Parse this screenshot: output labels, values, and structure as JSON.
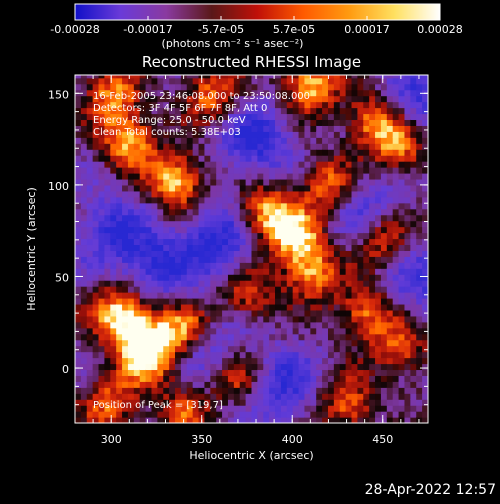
{
  "chart_data": {
    "type": "heatmap",
    "title": "Reconstructed RHESSI Image",
    "xlabel": "Heliocentric X (arcsec)",
    "ylabel": "Heliocentric Y (arcsec)",
    "xlim": [
      280,
      475
    ],
    "ylim": [
      -30,
      160
    ],
    "xticks": [
      300,
      350,
      400,
      450
    ],
    "yticks": [
      0,
      50,
      100,
      150
    ],
    "colorbar": {
      "unit_label": "(photons cm⁻² s⁻¹ asec⁻²)",
      "ticks": [
        "-0.00028",
        "-0.00017",
        "-5.7e-05",
        "5.7e-05",
        "0.00017",
        "0.00028"
      ],
      "range": [
        -0.00028,
        0.00028
      ],
      "stops": [
        "#1010c8",
        "#6a3ad8",
        "#8a3aa0",
        "#5a1818",
        "#c01008",
        "#ff5a00",
        "#ff9a10",
        "#ffe060",
        "#ffffff"
      ]
    },
    "annotations": [
      "16-Feb-2005 23:46:08.000 to 23:50:08.000",
      "Detectors: 3F 4F 5F 6F 7F 8F, Att 0",
      "Energy Range: 25.0 - 50.0 keV",
      "Clean     Total counts: 5.38E+03",
      "Position of Peak = [319,7]"
    ],
    "hotspots": [
      {
        "x": 320,
        "y": 7,
        "v": 1.0
      },
      {
        "x": 312,
        "y": 25,
        "v": 0.8
      },
      {
        "x": 340,
        "y": 22,
        "v": 0.75
      },
      {
        "x": 300,
        "y": 32,
        "v": 0.55
      },
      {
        "x": 336,
        "y": 102,
        "v": 0.95
      },
      {
        "x": 310,
        "y": 125,
        "v": 0.85
      },
      {
        "x": 300,
        "y": 150,
        "v": 0.7
      },
      {
        "x": 355,
        "y": 150,
        "v": 0.7
      },
      {
        "x": 410,
        "y": 155,
        "v": 0.9
      },
      {
        "x": 445,
        "y": 135,
        "v": 0.75
      },
      {
        "x": 460,
        "y": 120,
        "v": 0.7
      },
      {
        "x": 385,
        "y": 85,
        "v": 0.85
      },
      {
        "x": 402,
        "y": 72,
        "v": 0.8
      },
      {
        "x": 420,
        "y": 100,
        "v": 0.7
      },
      {
        "x": 410,
        "y": 52,
        "v": 0.75
      },
      {
        "x": 450,
        "y": 70,
        "v": 0.65
      },
      {
        "x": 440,
        "y": 30,
        "v": 0.7
      },
      {
        "x": 460,
        "y": 10,
        "v": 0.6
      },
      {
        "x": 375,
        "y": 40,
        "v": 0.55
      },
      {
        "x": 370,
        "y": -5,
        "v": 0.6
      },
      {
        "x": 300,
        "y": -20,
        "v": 0.65
      },
      {
        "x": 340,
        "y": -25,
        "v": 0.55
      },
      {
        "x": 430,
        "y": -20,
        "v": 0.7
      }
    ],
    "coldspots": [
      {
        "x": 360,
        "y": 70,
        "v": 0.9
      },
      {
        "x": 325,
        "y": 55,
        "v": 0.8
      },
      {
        "x": 440,
        "y": 88,
        "v": 0.6
      },
      {
        "x": 470,
        "y": 145,
        "v": 0.7
      },
      {
        "x": 380,
        "y": 125,
        "v": 0.85
      },
      {
        "x": 300,
        "y": 75,
        "v": 0.7
      },
      {
        "x": 395,
        "y": -10,
        "v": 0.75
      },
      {
        "x": 470,
        "y": 50,
        "v": 0.6
      },
      {
        "x": 355,
        "y": 10,
        "v": 0.55
      }
    ]
  },
  "footer": {
    "date": "28-Apr-2022 12:57"
  }
}
